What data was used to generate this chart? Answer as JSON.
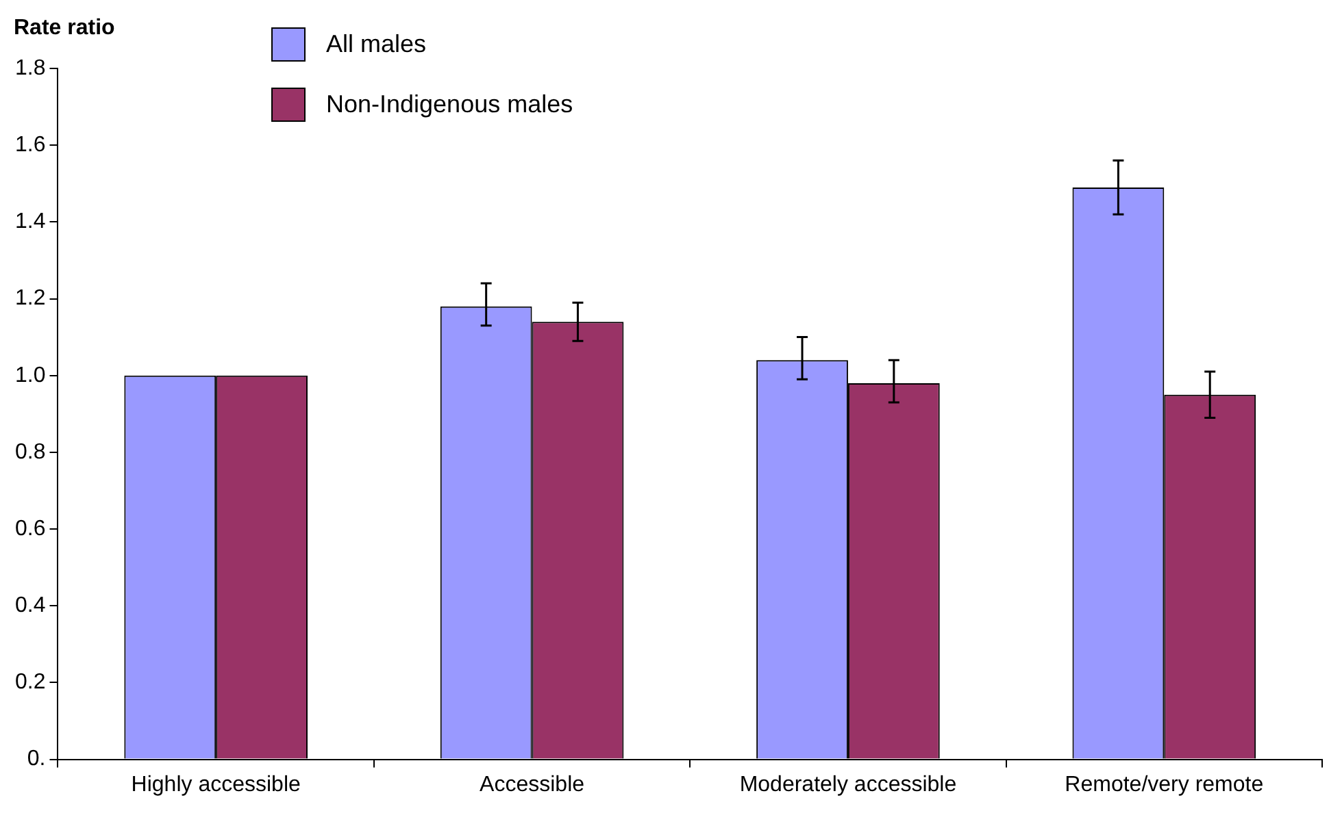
{
  "chart_data": {
    "type": "bar",
    "ylabel": "Rate ratio",
    "categories": [
      "Highly accessible",
      "Accessible",
      "Moderately accessible",
      "Remote/very remote"
    ],
    "series": [
      {
        "name": "All males",
        "color": "#9999ff",
        "values": [
          1.0,
          1.18,
          1.04,
          1.49
        ],
        "errors": [
          null,
          [
            1.13,
            1.24
          ],
          [
            0.99,
            1.1
          ],
          [
            1.42,
            1.56
          ]
        ]
      },
      {
        "name": "Non-Indigenous males",
        "color": "#993366",
        "values": [
          1.0,
          1.14,
          0.98,
          0.95
        ],
        "errors": [
          null,
          [
            1.09,
            1.19
          ],
          [
            0.93,
            1.04
          ],
          [
            0.89,
            1.01
          ]
        ]
      }
    ],
    "ylim": [
      0,
      1.8
    ],
    "yticks": [
      {
        "value": 0,
        "label": "0."
      },
      0.2,
      0.4,
      0.6,
      0.8,
      {
        "value": 1,
        "label": "1.0"
      },
      1.2,
      1.4,
      1.6,
      1.8
    ],
    "grid": false,
    "legend": "top left"
  }
}
